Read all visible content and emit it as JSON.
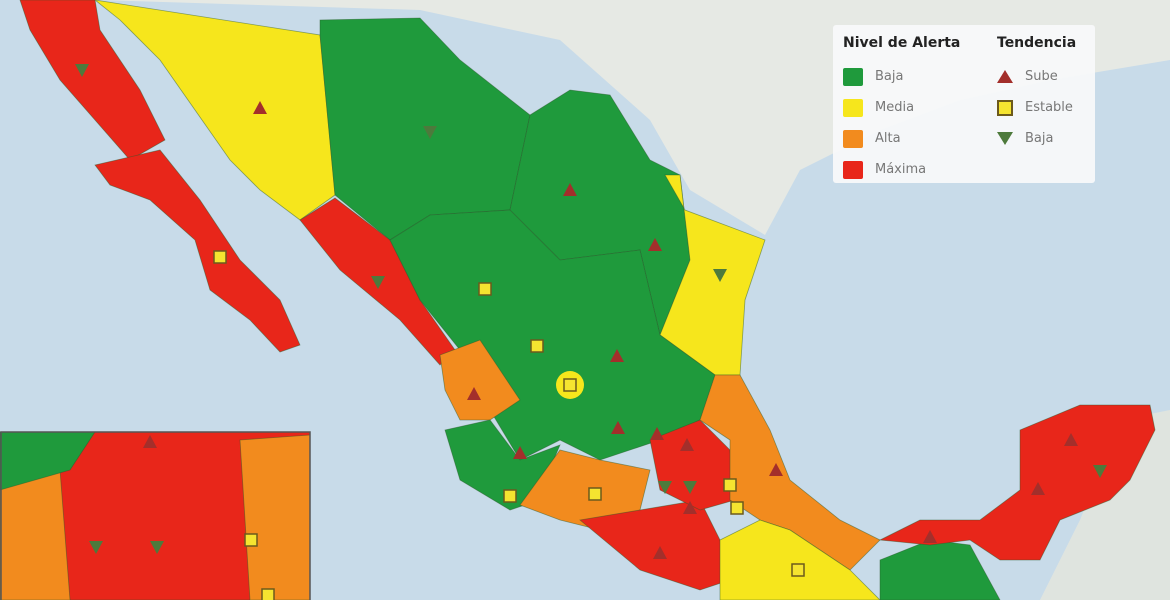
{
  "colors": {
    "baja": "#1f9a3c",
    "media": "#f6e61c",
    "alta": "#f28b1e",
    "maxima": "#e8261a",
    "ocean": "#c8dbe9",
    "land": "#e6e9e4",
    "up": "#a32f2b",
    "stable": "#f5e430",
    "down": "#4d7a3c"
  },
  "legend": {
    "level_title": "Nivel de Alerta",
    "levels": [
      {
        "label": "Baja",
        "color": "#1f9a3c"
      },
      {
        "label": "Media",
        "color": "#f6e61c"
      },
      {
        "label": "Alta",
        "color": "#f28b1e"
      },
      {
        "label": "Máxima",
        "color": "#e8261a"
      }
    ],
    "trend_title": "Tendencia",
    "trends": [
      {
        "label": "Sube",
        "icon": "triangle-up-icon"
      },
      {
        "label": "Estable",
        "icon": "square-icon"
      },
      {
        "label": "Baja",
        "icon": "triangle-down-icon"
      }
    ]
  }
}
